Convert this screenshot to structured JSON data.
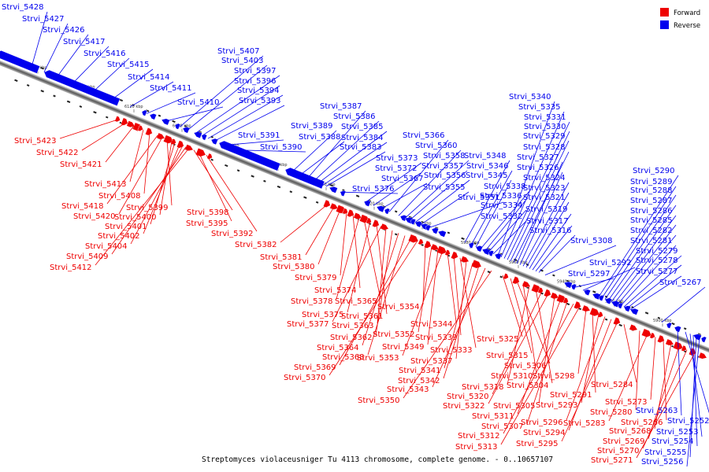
{
  "caption": "Streptomyces violaceusniger Tu 4113 chromosome, complete genome. - 0..10657107",
  "legend": [
    {
      "label": "Forward",
      "color": "#ee0000"
    },
    {
      "label": "Reverse",
      "color": "#0000ee"
    }
  ],
  "axis_ticks": [
    "6160 kbp",
    "6140 kbp",
    "6120 kbp",
    "6100 kbp",
    "6080 kbp",
    "6060 kbp",
    "6040 kbp",
    "6020 kbp",
    "6000 kbp",
    "5980 kbp",
    "5960 kbp",
    "5940 kbp",
    "5920 kbp",
    "5900 kbp"
  ],
  "reverse_labels": [
    "Strvi_5428",
    "Strvi_5427",
    "Strvi_5426",
    "Strvi_5417",
    "Strvi_5416",
    "Strvi_5415",
    "Strvi_5414",
    "Strvi_5411",
    "Strvi_5410",
    "Strvi_5407",
    "Strvi_5403",
    "Strvi_5397",
    "Strvi_5396",
    "Strvi_5394",
    "Strvi_5393",
    "Strvi_5391",
    "Strvi_5390",
    "Strvi_5389",
    "Strvi_5388",
    "Strvi_5387",
    "Strvi_5386",
    "Strvi_5385",
    "Strvi_5384",
    "Strvi_5383",
    "Strvi_5376",
    "Strvi_5373",
    "Strvi_5372",
    "Strvi_5367",
    "Strvi_5366",
    "Strvi_5360",
    "Strvi_5358",
    "Strvi_5357",
    "Strvi_5356",
    "Strvi_5355",
    "Strvi_5351",
    "Strvi_5348",
    "Strvi_5346",
    "Strvi_5345",
    "Strvi_5338",
    "Strvi_5336",
    "Strvi_5334",
    "Strvi_5332",
    "Strvi_5340",
    "Strvi_5335",
    "Strvi_5331",
    "Strvi_5330",
    "Strvi_5329",
    "Strvi_5328",
    "Strvi_5327",
    "Strvi_5326",
    "Strvi_5324",
    "Strvi_5323",
    "Strvi_5321",
    "Strvi_5319",
    "Strvi_5317",
    "Strvi_5316",
    "Strvi_5308",
    "Strvi_5292",
    "Strvi_5297",
    "Strvi_5290",
    "Strvi_5289",
    "Strvi_5288",
    "Strvi_5287",
    "Strvi_5286",
    "Strvi_5285",
    "Strvi_5282",
    "Strvi_5281",
    "Strvi_5279",
    "Strvi_5278",
    "Strvi_5277",
    "Strvi_5267",
    "Strvi_5263",
    "Strvi_5252",
    "Strvi_5253",
    "Strvi_5254",
    "Strvi_5255",
    "Strvi_5256"
  ],
  "forward_labels": [
    "Strvi_5423",
    "Strvi_5422",
    "Strvi_5421",
    "Strvi_5413",
    "Strvi_5408",
    "Strvi_5418",
    "Strvi_5420",
    "Strvi_5399",
    "Strvi_5400",
    "Strvi_5401",
    "Strvi_5402",
    "Strvi_5404",
    "Strvi_5409",
    "Strvi_5412",
    "Strvi_5398",
    "Strvi_5395",
    "Strvi_5392",
    "Strvi_5382",
    "Strvi_5381",
    "Strvi_5380",
    "Strvi_5379",
    "Strvi_5374",
    "Strvi_5378",
    "Strvi_5365",
    "Strvi_5375",
    "Strvi_5361",
    "Strvi_5377",
    "Strvi_5363",
    "Strvi_5362",
    "Strvi_5364",
    "Strvi_5368",
    "Strvi_5369",
    "Strvi_5370",
    "Strvi_5354",
    "Strvi_5352",
    "Strvi_5349",
    "Strvi_5353",
    "Strvi_5344",
    "Strvi_5339",
    "Strvi_5333",
    "Strvi_5337",
    "Strvi_5341",
    "Strvi_5342",
    "Strvi_5343",
    "Strvi_5350",
    "Strvi_5325",
    "Strvi_5315",
    "Strvi_5306",
    "Strvi_5310",
    "Strvi_5318",
    "Strvi_5304",
    "Strvi_5320",
    "Strvi_5322",
    "Strvi_5305",
    "Strvi_5311",
    "Strvi_5307",
    "Strvi_5312",
    "Strvi_5313",
    "Strvi_5298",
    "Strvi_5291",
    "Strvi_5293",
    "Strvi_5296",
    "Strvi_5294",
    "Strvi_5295",
    "Strvi_5284",
    "Strvi_5280",
    "Strvi_5283",
    "Strvi_5273",
    "Strvi_5266",
    "Strvi_5268",
    "Strvi_5269",
    "Strvi_5270",
    "Strvi_5271"
  ]
}
